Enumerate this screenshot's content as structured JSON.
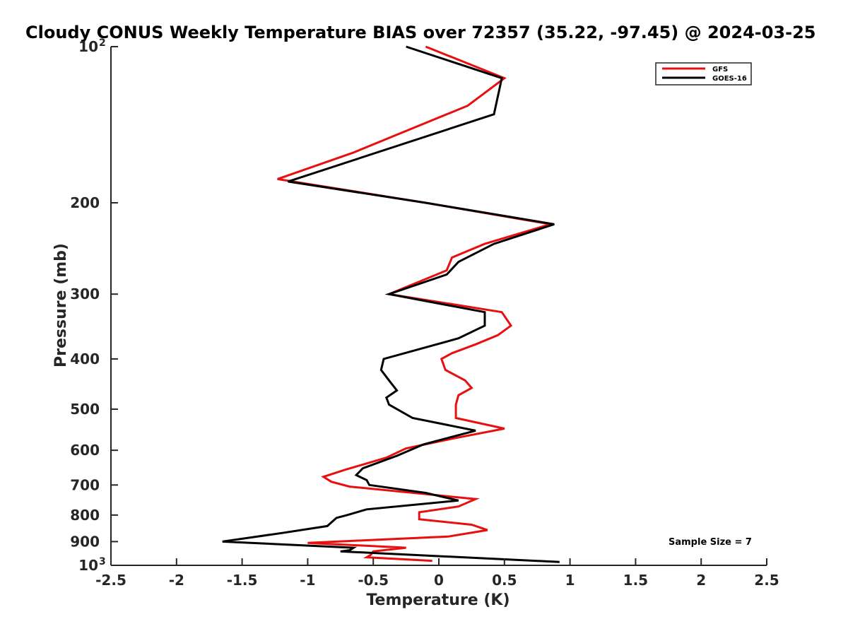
{
  "chart_data": {
    "type": "line",
    "title": "Cloudy CONUS Weekly Temperature BIAS over 72357 (35.22, -97.45) @ 2024-03-25",
    "xlabel": "Temperature (K)",
    "ylabel": "Pressure (mb)",
    "xlim": [
      -2.5,
      2.5
    ],
    "ylim": [
      100,
      1000
    ],
    "y_scale": "log",
    "y_reversed": true,
    "grid": false,
    "legend_position": "top-right",
    "x_ticks": [
      -2.5,
      -2,
      -1.5,
      -1,
      -0.5,
      0,
      0.5,
      1,
      1.5,
      2,
      2.5
    ],
    "x_tick_labels": [
      "-2.5",
      "-2",
      "-1.5",
      "-1",
      "-0.5",
      "0",
      "0.5",
      "1",
      "1.5",
      "2",
      "2.5"
    ],
    "y_ticks": [
      100,
      200,
      300,
      400,
      500,
      600,
      700,
      800,
      900,
      1000
    ],
    "y_tick_labels": [
      "200",
      "300",
      "400",
      "500",
      "600",
      "700",
      "800",
      "900"
    ],
    "y_tick_pow_labels": {
      "base": "10",
      "top_exp": "2",
      "bottom_exp": "3"
    },
    "annotation": "Sample Size = 7",
    "series": [
      {
        "name": "GFS",
        "color": "#e8100e",
        "points": [
          [
            -0.1,
            100
          ],
          [
            0.5,
            115
          ],
          [
            0.22,
            130
          ],
          [
            -0.65,
            160
          ],
          [
            -1.23,
            180
          ],
          [
            -0.1,
            200
          ],
          [
            0.85,
            220
          ],
          [
            0.35,
            240
          ],
          [
            0.1,
            255
          ],
          [
            0.06,
            270
          ],
          [
            -0.38,
            300
          ],
          [
            0.48,
            325
          ],
          [
            0.55,
            345
          ],
          [
            0.45,
            360
          ],
          [
            0.28,
            375
          ],
          [
            0.1,
            390
          ],
          [
            0.02,
            400
          ],
          [
            0.05,
            420
          ],
          [
            0.2,
            440
          ],
          [
            0.25,
            455
          ],
          [
            0.15,
            470
          ],
          [
            0.13,
            490
          ],
          [
            0.13,
            520
          ],
          [
            0.5,
            545
          ],
          [
            0.1,
            570
          ],
          [
            -0.25,
            595
          ],
          [
            -0.4,
            620
          ],
          [
            -0.72,
            655
          ],
          [
            -0.88,
            675
          ],
          [
            -0.82,
            690
          ],
          [
            -0.68,
            705
          ],
          [
            0.28,
            745
          ],
          [
            0.15,
            770
          ],
          [
            -0.15,
            790
          ],
          [
            -0.15,
            815
          ],
          [
            0.25,
            835
          ],
          [
            0.37,
            855
          ],
          [
            0.07,
            880
          ],
          [
            -1.0,
            905
          ],
          [
            -0.25,
            925
          ],
          [
            -0.5,
            940
          ],
          [
            -0.52,
            955
          ],
          [
            -0.55,
            965
          ],
          [
            -0.05,
            980
          ]
        ]
      },
      {
        "name": "GOES-16",
        "color": "#000000",
        "points": [
          [
            -0.25,
            100
          ],
          [
            0.48,
            115
          ],
          [
            0.42,
            135
          ],
          [
            -1.15,
            182
          ],
          [
            -0.1,
            200
          ],
          [
            0.88,
            220
          ],
          [
            0.42,
            240
          ],
          [
            0.15,
            260
          ],
          [
            0.06,
            275
          ],
          [
            -0.38,
            300
          ],
          [
            0.35,
            325
          ],
          [
            0.35,
            345
          ],
          [
            0.15,
            365
          ],
          [
            -0.1,
            380
          ],
          [
            -0.42,
            400
          ],
          [
            -0.44,
            420
          ],
          [
            -0.38,
            440
          ],
          [
            -0.32,
            460
          ],
          [
            -0.4,
            475
          ],
          [
            -0.38,
            490
          ],
          [
            -0.2,
            520
          ],
          [
            0.28,
            550
          ],
          [
            -0.12,
            585
          ],
          [
            -0.32,
            615
          ],
          [
            -0.58,
            650
          ],
          [
            -0.63,
            670
          ],
          [
            -0.55,
            685
          ],
          [
            -0.53,
            700
          ],
          [
            -0.1,
            725
          ],
          [
            0.15,
            750
          ],
          [
            -0.55,
            780
          ],
          [
            -0.7,
            800
          ],
          [
            -0.78,
            810
          ],
          [
            -0.85,
            840
          ],
          [
            -1.18,
            865
          ],
          [
            -1.65,
            900
          ],
          [
            -0.65,
            925
          ],
          [
            -0.68,
            935
          ],
          [
            -0.75,
            940
          ],
          [
            0.92,
            985
          ]
        ]
      }
    ]
  }
}
